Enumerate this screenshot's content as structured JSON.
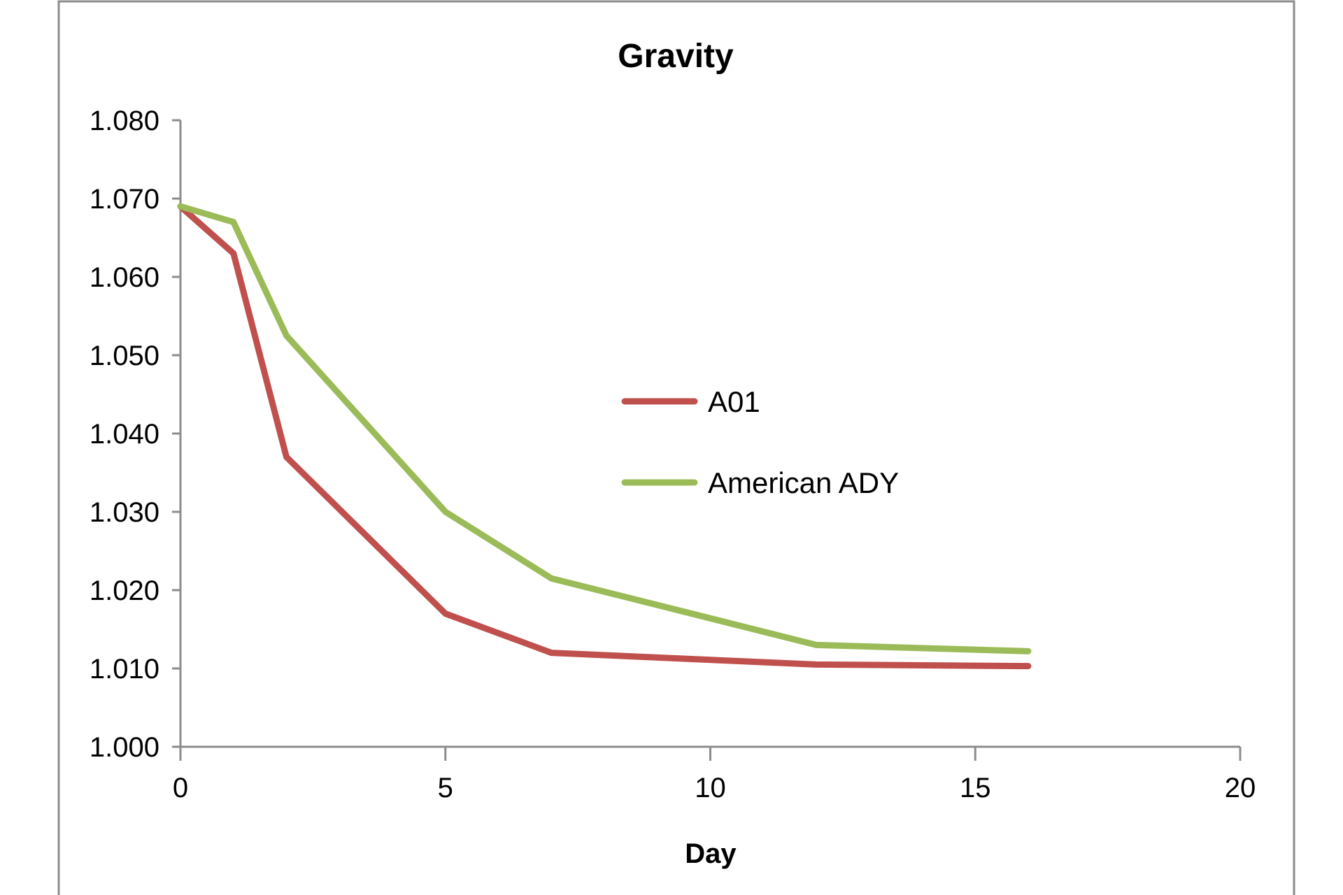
{
  "chart_data": {
    "type": "line",
    "title": "Gravity",
    "xlabel": "Day",
    "ylabel": "",
    "xlim": [
      0,
      20
    ],
    "ylim": [
      1.0,
      1.08
    ],
    "x_ticks": [
      "0",
      "5",
      "10",
      "15",
      "20"
    ],
    "y_ticks": [
      "1.000",
      "1.010",
      "1.020",
      "1.030",
      "1.040",
      "1.050",
      "1.060",
      "1.070",
      "1.080"
    ],
    "grid": false,
    "legend_position": "center",
    "series": [
      {
        "name": "A01",
        "color": "#C0504D",
        "points": [
          [
            0,
            1.069
          ],
          [
            1,
            1.063
          ],
          [
            2,
            1.037
          ],
          [
            5,
            1.017
          ],
          [
            7,
            1.012
          ],
          [
            12,
            1.0105
          ],
          [
            16,
            1.0103
          ]
        ]
      },
      {
        "name": "American ADY",
        "color": "#9BBB59",
        "points": [
          [
            0,
            1.069
          ],
          [
            1,
            1.067
          ],
          [
            2,
            1.0525
          ],
          [
            5,
            1.03
          ],
          [
            7,
            1.0215
          ],
          [
            12,
            1.013
          ],
          [
            16,
            1.0122
          ]
        ]
      }
    ]
  }
}
